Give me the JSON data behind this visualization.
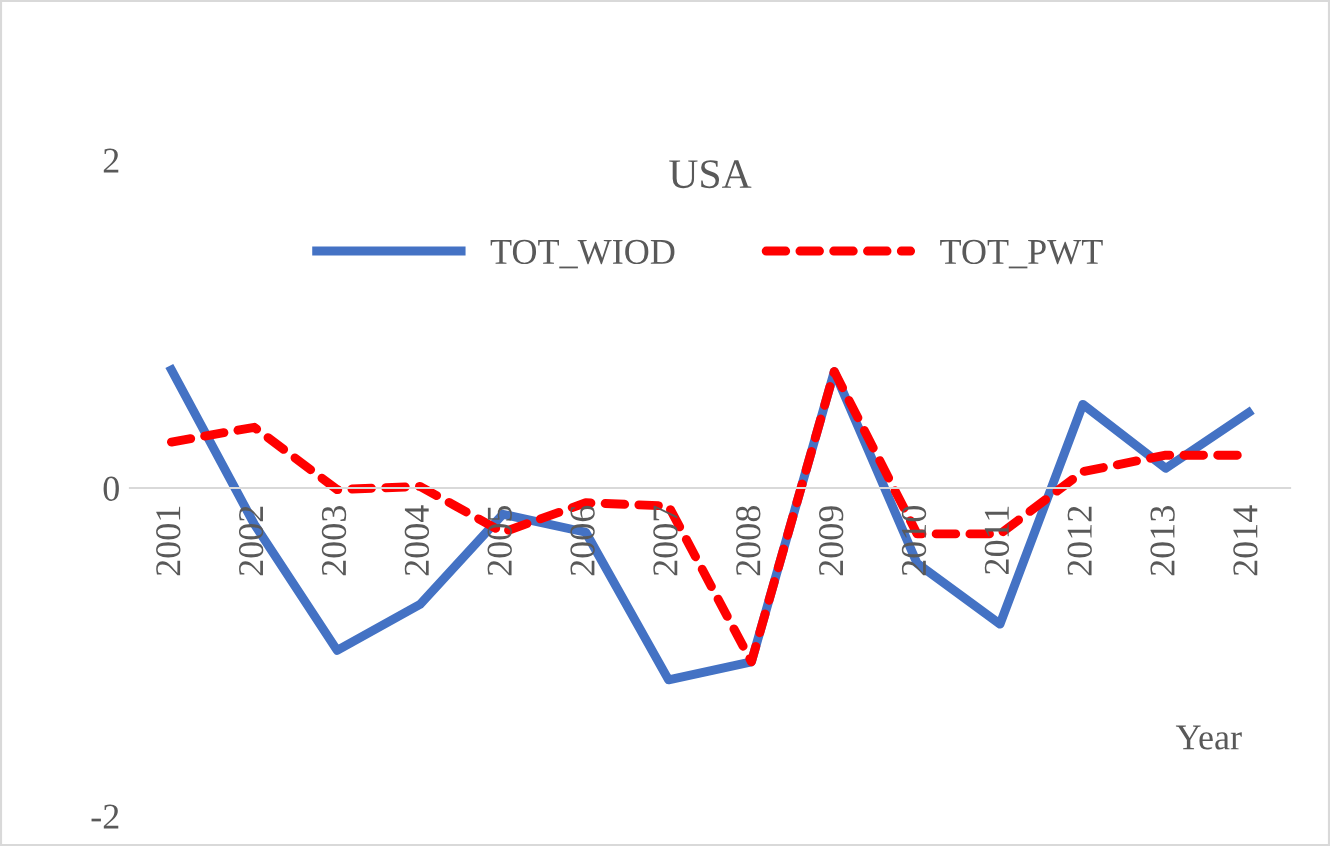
{
  "chart_data": {
    "type": "line",
    "title": "USA",
    "xlabel": "Year",
    "categories": [
      "2001",
      "2002",
      "2003",
      "2004",
      "2005",
      "2006",
      "2007",
      "2008",
      "2009",
      "2010",
      "2011",
      "2012",
      "2013",
      "2014"
    ],
    "series": [
      {
        "name": "TOT_WIOD",
        "color": "#4472c4",
        "line_style": "solid",
        "values": [
          0.72,
          -0.22,
          -0.99,
          -0.71,
          -0.16,
          -0.27,
          -1.17,
          -1.06,
          0.71,
          -0.46,
          -0.83,
          0.51,
          0.12,
          0.46
        ]
      },
      {
        "name": "TOT_PWT",
        "color": "#ff0000",
        "line_style": "dashed",
        "values": [
          0.28,
          0.37,
          -0.01,
          0.01,
          -0.27,
          -0.09,
          -0.11,
          -1.06,
          0.71,
          -0.28,
          -0.28,
          0.1,
          0.2,
          0.2
        ]
      }
    ],
    "ylim": [
      -2,
      2
    ],
    "yticks": [
      {
        "value": -2,
        "label": "-2"
      },
      0,
      2
    ],
    "grid": false,
    "legend": "top"
  }
}
